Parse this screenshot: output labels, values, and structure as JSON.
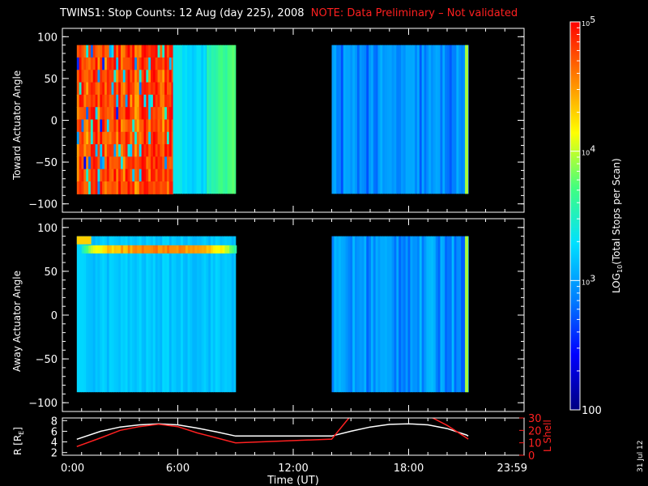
{
  "title": {
    "main": "TWINS1: Stop Counts: 12 Aug (day 225), 2008",
    "note": "NOTE: Data Preliminary – Not validated"
  },
  "side_date": "31 Jul 12",
  "colorbar": {
    "label": "LOG10(Total Stops per Scan)",
    "label_prefix": "LOG",
    "label_sub": "10",
    "label_suffix": "(Total Stops per Scan)",
    "ticks": [
      {
        "base": "10",
        "exp": "5",
        "value": 100000
      },
      {
        "base": "10",
        "exp": "4",
        "value": 10000
      },
      {
        "base": "10",
        "exp": "3",
        "value": 1000
      },
      {
        "base": "100",
        "exp": "",
        "value": 100
      }
    ],
    "range": [
      100,
      100000
    ],
    "scale": "log",
    "colors": [
      "#000080",
      "#0000ff",
      "#0080ff",
      "#00e0ff",
      "#40ff80",
      "#ffff00",
      "#ff8000",
      "#ff0000"
    ]
  },
  "xaxis": {
    "label": "Time (UT)",
    "ticks": [
      "0:00",
      "6:00",
      "12:00",
      "18:00",
      "23:59"
    ],
    "tick_hours": [
      0,
      6,
      12,
      18,
      24
    ],
    "range": [
      0,
      24
    ]
  },
  "chart_data": [
    {
      "type": "heatmap",
      "ylabel": "Toward Actuator Angle",
      "ylim": [
        -110,
        110
      ],
      "yticks": [
        "100",
        "50",
        "0",
        "−50",
        "−100"
      ],
      "ytick_values": [
        100,
        50,
        0,
        -50,
        -100
      ],
      "data_yrange": [
        -88,
        90
      ],
      "blocks": [
        {
          "t0": 0.75,
          "t1": 5.75,
          "level": "high",
          "approx_counts": 70000
        },
        {
          "t0": 5.75,
          "t1": 6.25,
          "level": "medium",
          "approx_counts": 2000
        },
        {
          "t0": 6.25,
          "t1": 7.5,
          "level": "medium",
          "approx_counts": 1800
        },
        {
          "t0": 7.5,
          "t1": 9.0,
          "level": "medium-high",
          "approx_counts": 4000
        },
        {
          "t0": 14.0,
          "t1": 21.1,
          "level": "low",
          "approx_counts": 800
        }
      ]
    },
    {
      "type": "heatmap",
      "ylabel": "Away Actuator Angle",
      "ylim": [
        -110,
        110
      ],
      "yticks": [
        "100",
        "50",
        "0",
        "−50",
        "−100"
      ],
      "ytick_values": [
        100,
        50,
        0,
        -50,
        -100
      ],
      "data_yrange": [
        -88,
        90
      ],
      "blocks": [
        {
          "t0": 0.75,
          "t1": 9.0,
          "level": "medium",
          "approx_counts": 1500
        },
        {
          "t0": 14.0,
          "t1": 21.1,
          "level": "low",
          "approx_counts": 900
        }
      ],
      "band": {
        "angle": 75,
        "t0": 1.0,
        "t1": 9.0,
        "approx_counts": 40000
      }
    },
    {
      "type": "line",
      "ylabel": "R [RE]",
      "ylabel_prefix": "R [R",
      "ylabel_sub": "E",
      "ylabel_suffix": "]",
      "ylim": [
        1.5,
        8.5
      ],
      "yticks": [
        "8",
        "6",
        "4",
        "2"
      ],
      "ytick_values": [
        8,
        6,
        4,
        2
      ],
      "y2label": "L Shell",
      "y2lim": [
        0,
        30
      ],
      "y2ticks": [
        "30",
        "20",
        "10",
        "0"
      ],
      "y2tick_values": [
        30,
        20,
        10,
        0
      ],
      "series": [
        {
          "role": "R",
          "color": "#ffffff",
          "x": [
            0.75,
            2,
            3,
            4,
            5,
            6,
            7,
            8,
            9,
            10,
            11,
            12,
            13,
            14,
            15,
            16,
            17,
            18,
            19,
            20,
            21,
            21.1
          ],
          "y": [
            4.5,
            6.0,
            6.8,
            7.2,
            7.4,
            7.2,
            6.6,
            5.9,
            5.1,
            5.1,
            5.1,
            5.1,
            5.1,
            5.1,
            6.0,
            6.8,
            7.3,
            7.4,
            7.2,
            6.5,
            5.3,
            5.1
          ]
        },
        {
          "role": "L",
          "color": "#ff2020",
          "x": [
            0.75,
            2,
            3,
            4,
            5,
            6,
            7,
            8,
            9,
            14,
            15,
            19,
            20,
            21,
            21.1
          ],
          "y": [
            7,
            14,
            20,
            23,
            25,
            23,
            18,
            14,
            10,
            13,
            32,
            32,
            24,
            14,
            13
          ]
        }
      ]
    }
  ]
}
